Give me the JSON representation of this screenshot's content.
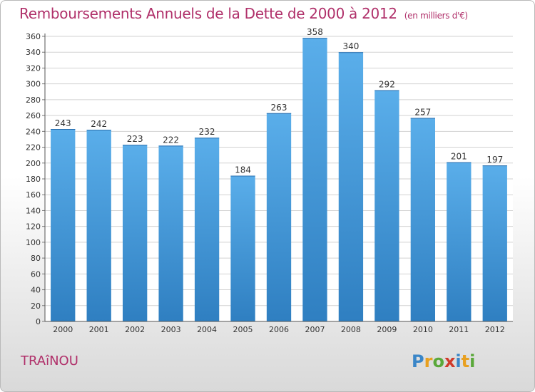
{
  "header": {
    "title": "Remboursements Annuels de la Dette de 2000 à 2012",
    "unit": "(en milliers d'€)"
  },
  "footer": {
    "place": "TRAîNOU",
    "logo_letters": [
      {
        "ch": "P",
        "color": "#3a86c8"
      },
      {
        "ch": "r",
        "color": "#e8a020"
      },
      {
        "ch": "o",
        "color": "#5aa83a"
      },
      {
        "ch": "x",
        "color": "#d03a2a"
      },
      {
        "ch": "i",
        "color": "#3a86c8"
      },
      {
        "ch": "t",
        "color": "#e8a020"
      },
      {
        "ch": "i",
        "color": "#5aa83a"
      }
    ]
  },
  "chart_data": {
    "type": "bar",
    "categories": [
      "2000",
      "2001",
      "2002",
      "2003",
      "2004",
      "2005",
      "2006",
      "2007",
      "2008",
      "2009",
      "2010",
      "2011",
      "2012"
    ],
    "values": [
      243,
      242,
      223,
      222,
      232,
      184,
      263,
      358,
      340,
      292,
      257,
      201,
      197
    ],
    "ylim": [
      0,
      360
    ],
    "ytick_step": 20,
    "grid": true,
    "bar_color_top": "#5aaeea",
    "bar_color_bottom": "#2f7fc1"
  }
}
